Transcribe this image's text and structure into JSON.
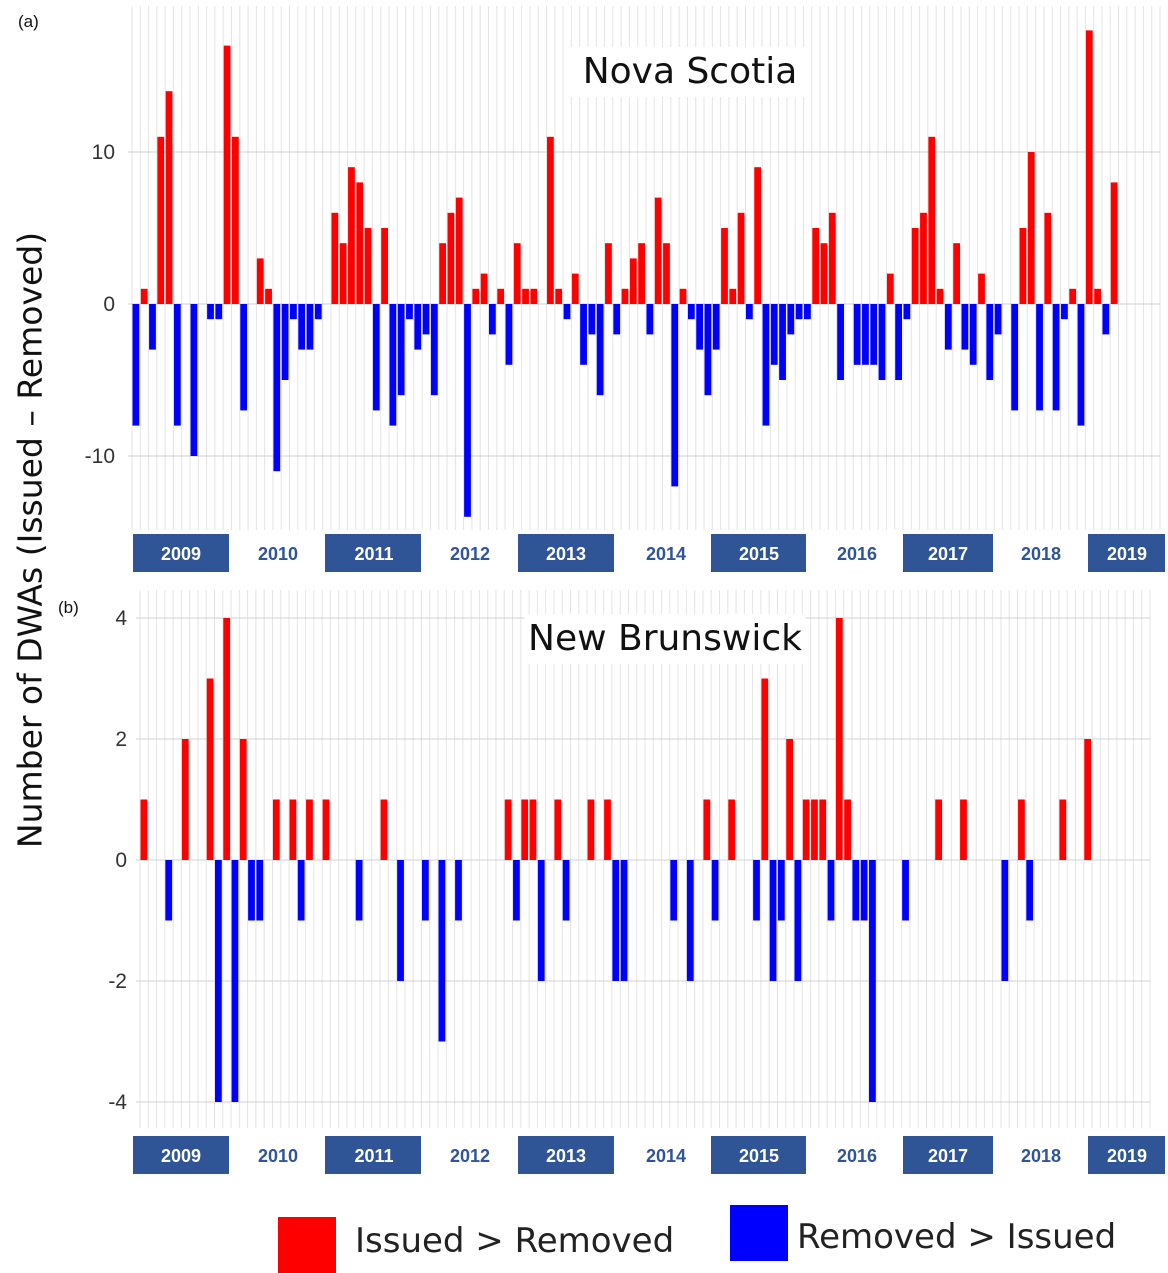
{
  "figure": {
    "ylabel": "Number of DWAs (Issued – Removed)",
    "legend": {
      "positive_label": "Issued > Removed",
      "negative_label": "Removed > Issued"
    },
    "colors": {
      "positive": "#ff0000",
      "negative": "#0000ff",
      "year_band": "#2f5597",
      "year_text_on_band": "#ffffff",
      "year_text_plain": "#2f5597",
      "grid": "#e4e4e4",
      "tick_text": "#333333"
    }
  },
  "chart_data": [
    {
      "panel_label": "(a)",
      "type": "bar",
      "title": "Nova Scotia",
      "ylim": [
        -15,
        18
      ],
      "yticks": [
        10,
        0,
        -10
      ],
      "ytick_labels": [
        "10",
        "0",
        "-10"
      ],
      "grid": true,
      "years": [
        "2009",
        "2010",
        "2011",
        "2012",
        "2013",
        "2014",
        "2015",
        "2016",
        "2017",
        "2018",
        "2019"
      ],
      "values": [
        -8,
        1,
        -3,
        11,
        14,
        -8,
        0,
        -10,
        0,
        -1,
        -1,
        17,
        11,
        -7,
        0,
        3,
        1,
        -11,
        -5,
        -1,
        -3,
        -3,
        -1,
        0,
        6,
        4,
        9,
        8,
        5,
        -7,
        5,
        -8,
        -6,
        -1,
        -3,
        -2,
        -6,
        4,
        6,
        7,
        -14,
        1,
        2,
        -2,
        1,
        -4,
        4,
        1,
        1,
        0,
        11,
        1,
        -1,
        2,
        -4,
        -2,
        -6,
        4,
        -2,
        1,
        3,
        4,
        -2,
        7,
        4,
        -12,
        1,
        -1,
        -3,
        -6,
        -3,
        5,
        1,
        6,
        -1,
        9,
        -8,
        -4,
        -5,
        -2,
        -1,
        -1,
        5,
        4,
        6,
        -5,
        0,
        -4,
        -4,
        -4,
        -5,
        2,
        -5,
        -1,
        5,
        6,
        11,
        1,
        -3,
        4,
        -3,
        -4,
        2,
        -5,
        -2,
        0,
        -7,
        5,
        10,
        -7,
        6,
        -7,
        -1,
        1,
        -8,
        18,
        1,
        -2,
        8
      ],
      "n_slots": 124
    },
    {
      "panel_label": "(b)",
      "type": "bar",
      "title": "New Brunswick",
      "ylim": [
        -4.05,
        4.1
      ],
      "yticks": [
        4,
        2,
        0,
        -2,
        -4
      ],
      "ytick_labels": [
        "4",
        "2",
        "0",
        "-2",
        "-4"
      ],
      "grid": true,
      "years": [
        "2009",
        "2010",
        "2011",
        "2012",
        "2013",
        "2014",
        "2015",
        "2016",
        "2017",
        "2018",
        "2019"
      ],
      "values": [
        1,
        0,
        0,
        -1,
        0,
        2,
        0,
        0,
        3,
        -4,
        4,
        -4,
        2,
        -1,
        -1,
        0,
        1,
        0,
        1,
        -1,
        1,
        0,
        1,
        0,
        0,
        0,
        -1,
        0,
        0,
        1,
        0,
        -2,
        0,
        0,
        -1,
        0,
        -3,
        0,
        -1,
        0,
        0,
        0,
        0,
        0,
        1,
        -1,
        1,
        1,
        -2,
        0,
        1,
        -1,
        0,
        0,
        1,
        0,
        1,
        -2,
        -2,
        0,
        0,
        0,
        0,
        0,
        -1,
        0,
        -2,
        0,
        1,
        -1,
        0,
        1,
        0,
        0,
        -1,
        3,
        -2,
        -1,
        2,
        -2,
        1,
        1,
        1,
        -1,
        4,
        1,
        -1,
        -1,
        -4,
        0,
        0,
        0,
        -1,
        0,
        0,
        0,
        1,
        0,
        0,
        1,
        0,
        0,
        0,
        0,
        -2,
        0,
        1,
        -1,
        0,
        0,
        0,
        1,
        0,
        0,
        2
      ],
      "n_slots": 122
    }
  ]
}
